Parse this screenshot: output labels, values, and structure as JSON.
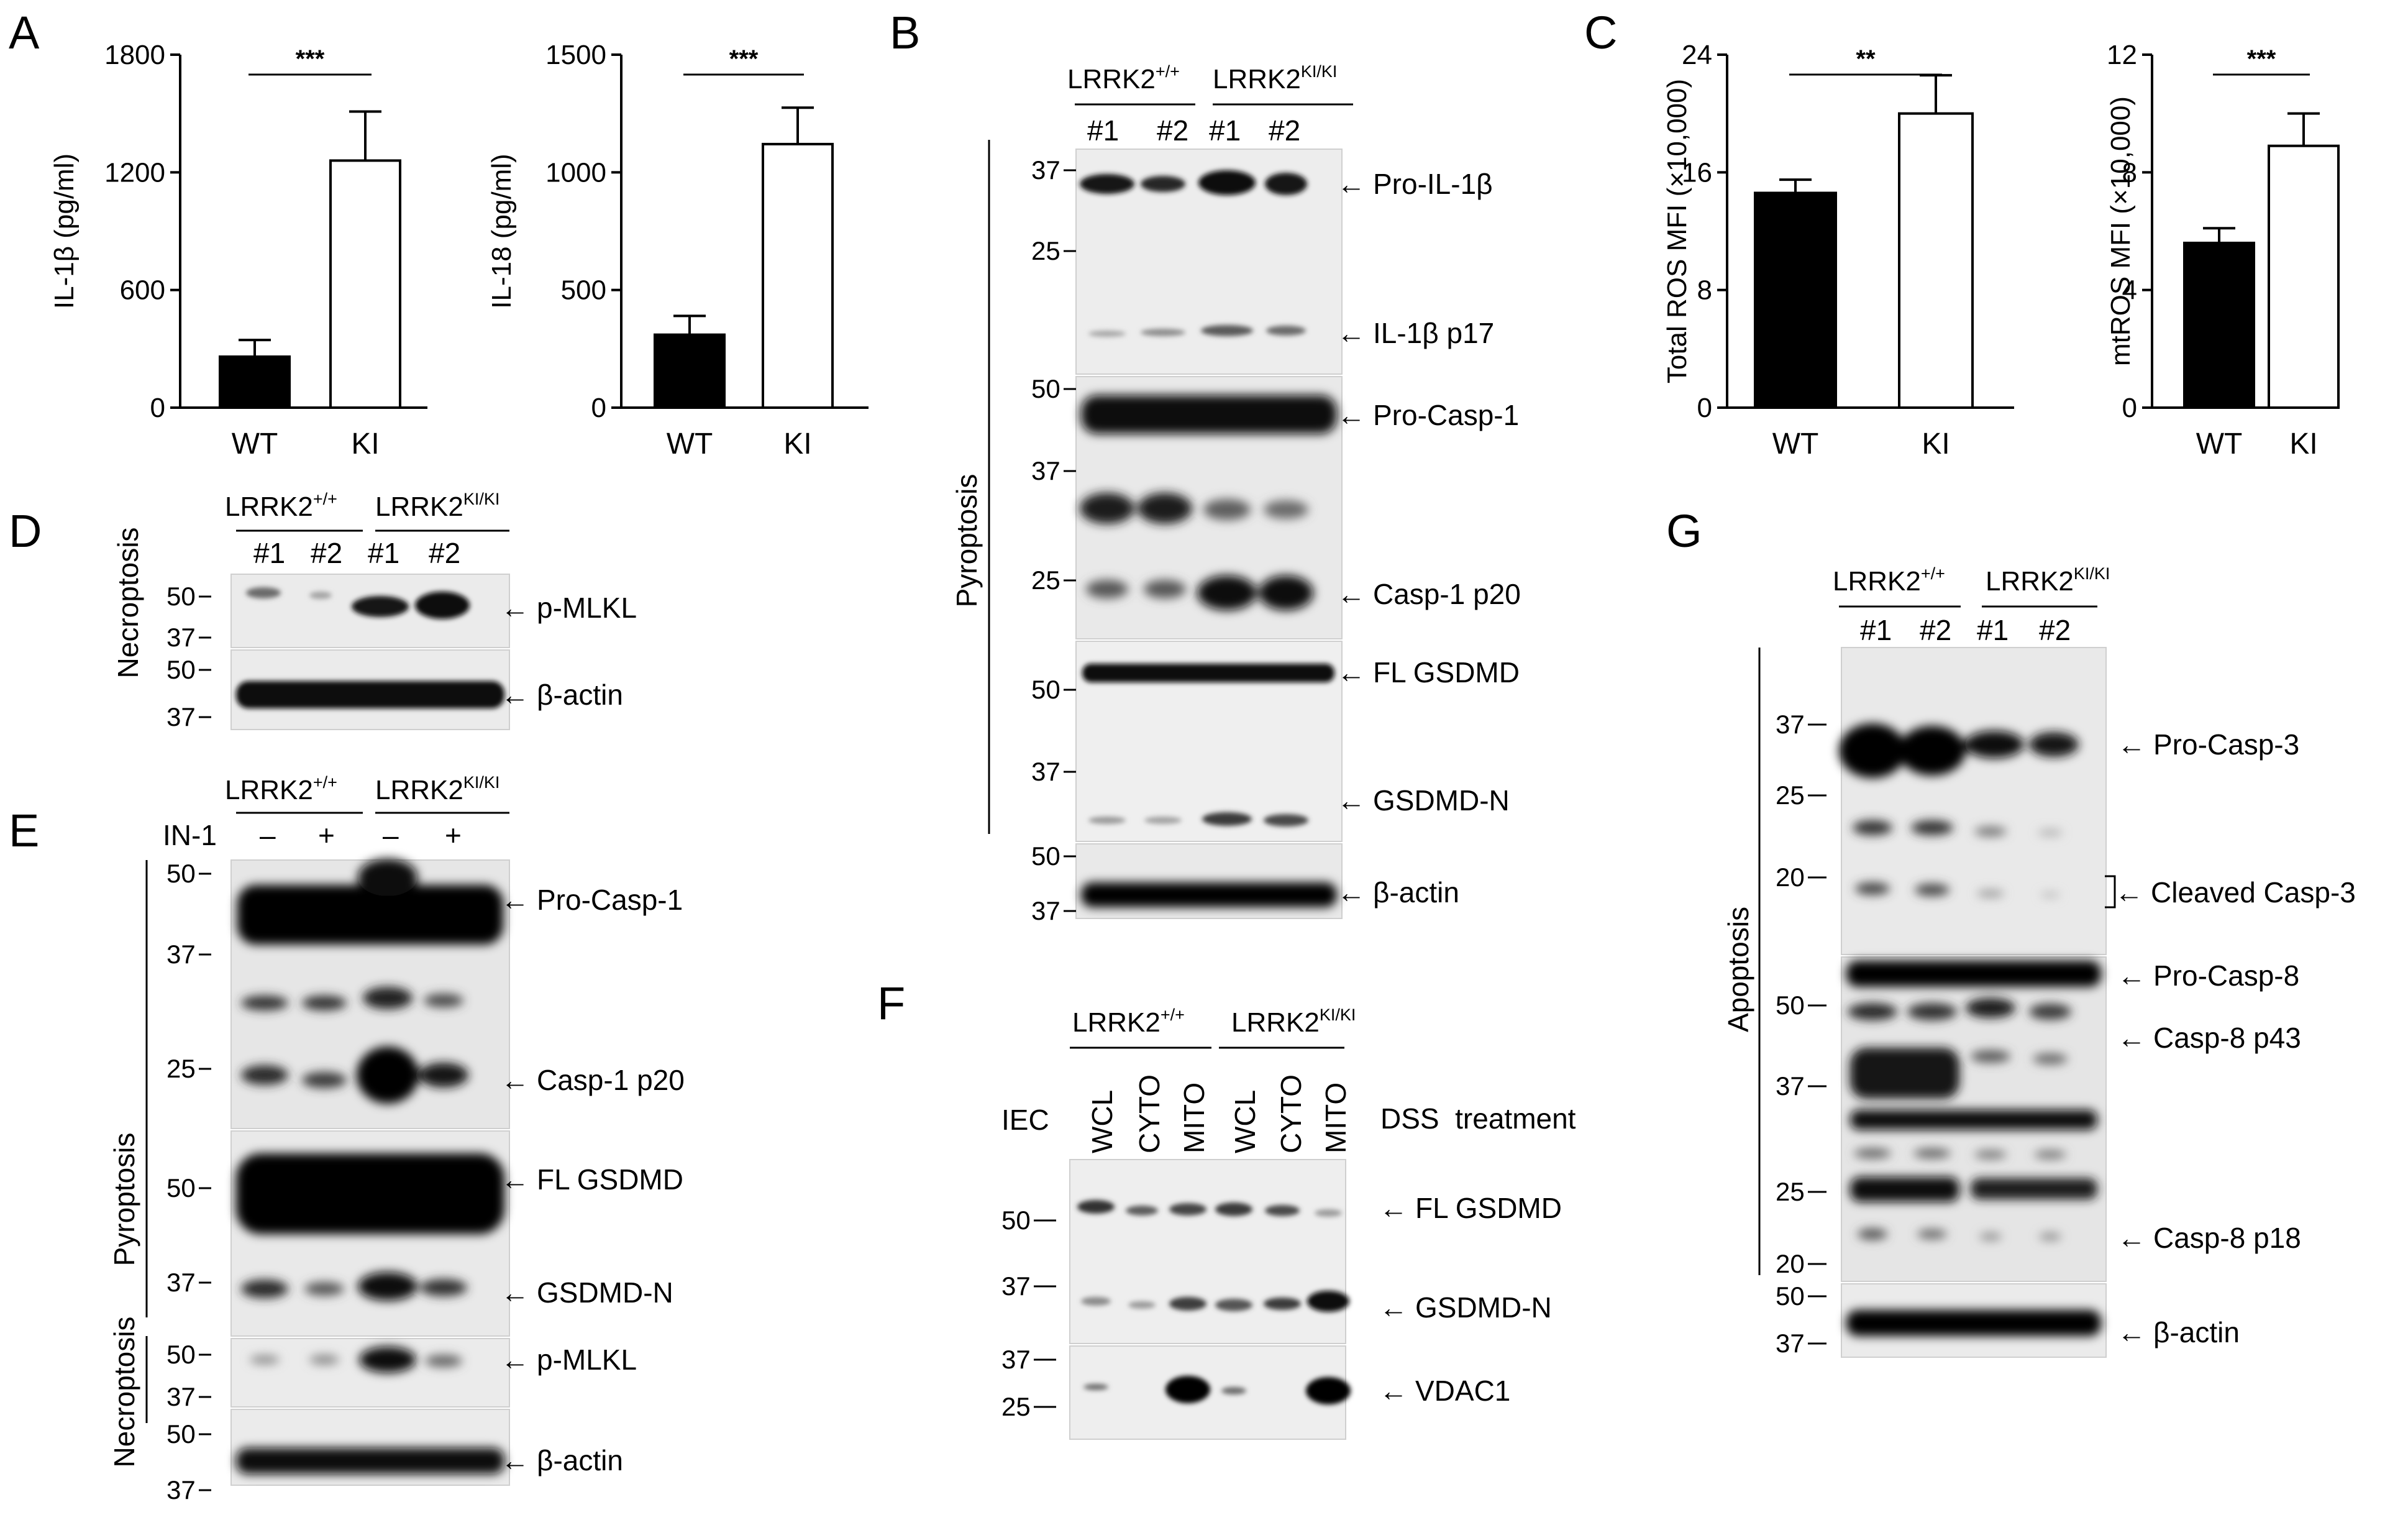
{
  "panels": {
    "A": "A",
    "B": "B",
    "C": "C",
    "D": "D",
    "E": "E",
    "F": "F",
    "G": "G"
  },
  "chart_data": [
    {
      "id": "A1",
      "type": "bar",
      "categories": [
        "WT",
        "KI"
      ],
      "values": [
        260,
        1260
      ],
      "errors": [
        85,
        250
      ],
      "ylabel": "IL-1β (pg/ml)",
      "ylim": [
        0,
        1800
      ],
      "yticks": [
        "0",
        "600",
        "1200",
        "1800"
      ],
      "significance": "***",
      "colors": [
        "#000000",
        "#ffffff"
      ]
    },
    {
      "id": "A2",
      "type": "bar",
      "categories": [
        "WT",
        "KI"
      ],
      "values": [
        310,
        1120
      ],
      "errors": [
        80,
        155
      ],
      "ylabel": "IL-18 (pg/ml)",
      "ylim": [
        0,
        1500
      ],
      "yticks": [
        "0",
        "500",
        "1000",
        "1500"
      ],
      "significance": "***",
      "colors": [
        "#000000",
        "#ffffff"
      ]
    },
    {
      "id": "C1",
      "type": "bar",
      "categories": [
        "WT",
        "KI"
      ],
      "values": [
        14.6,
        20.0
      ],
      "errors": [
        0.9,
        2.6
      ],
      "ylabel": "Total ROS MFI (×10,000)",
      "ylim": [
        0,
        24
      ],
      "yticks": [
        "0",
        "8",
        "16",
        "24"
      ],
      "significance": "**",
      "colors": [
        "#000000",
        "#ffffff"
      ]
    },
    {
      "id": "C2",
      "type": "bar",
      "categories": [
        "WT",
        "KI"
      ],
      "values": [
        5.6,
        8.9
      ],
      "errors": [
        0.5,
        1.1
      ],
      "ylabel": "mtROS MFI (×10,000)",
      "ylim": [
        0,
        12
      ],
      "yticks": [
        "0",
        "4",
        "8",
        "12"
      ],
      "significance": "***",
      "colors": [
        "#000000",
        "#ffffff"
      ]
    }
  ],
  "genotypes": {
    "wt": "LRRK2",
    "wt_sup": "+/+",
    "ki": "LRRK2",
    "ki_sup": "KI/KI"
  },
  "blots": {
    "B": {
      "lanes": [
        "#1",
        "#2",
        "#1",
        "#2"
      ],
      "side_label": "Pyroptosis",
      "mw": [
        "37",
        "25",
        "50",
        "37",
        "25",
        "50",
        "37",
        "50",
        "37"
      ],
      "bands": [
        "Pro-IL-1β",
        "IL-1β p17",
        "Pro-Casp-1",
        "Casp-1 p20",
        "FL GSDMD",
        "GSDMD-N",
        "β-actin"
      ]
    },
    "D": {
      "lanes": [
        "#1",
        "#2",
        "#1",
        "#2"
      ],
      "side_label": "Necroptosis",
      "mw": [
        "50",
        "37",
        "50",
        "37"
      ],
      "bands": [
        "p-MLKL",
        "β-actin"
      ]
    },
    "E": {
      "treatment_label": "IN-1",
      "lanes": [
        "–",
        "+",
        "–",
        "+"
      ],
      "side_labels": [
        "Pyroptosis",
        "Necroptosis"
      ],
      "mw": [
        "50",
        "37",
        "25",
        "50",
        "37",
        "50",
        "37",
        "50",
        "37"
      ],
      "bands": [
        "Pro-Casp-1",
        "Casp-1 p20",
        "FL GSDMD",
        "GSDMD-N",
        "p-MLKL",
        "β-actin"
      ]
    },
    "F": {
      "row_label": "IEC",
      "treatment": "DSS  treatment",
      "lanes": [
        "WCL",
        "CYTO",
        "MITO",
        "WCL",
        "CYTO",
        "MITO"
      ],
      "mw": [
        "50",
        "37",
        "37",
        "25"
      ],
      "bands": [
        "FL GSDMD",
        "GSDMD-N",
        "VDAC1"
      ]
    },
    "G": {
      "lanes": [
        "#1",
        "#2",
        "#1",
        "#2"
      ],
      "side_label": "Apoptosis",
      "mw": [
        "37",
        "25",
        "20",
        "50",
        "37",
        "25",
        "20",
        "50",
        "37"
      ],
      "bands": [
        "Pro-Casp-3",
        "Cleaved Casp-3",
        "Pro-Casp-8",
        "Casp-8 p43",
        "Casp-8 p18",
        "β-actin"
      ]
    }
  }
}
